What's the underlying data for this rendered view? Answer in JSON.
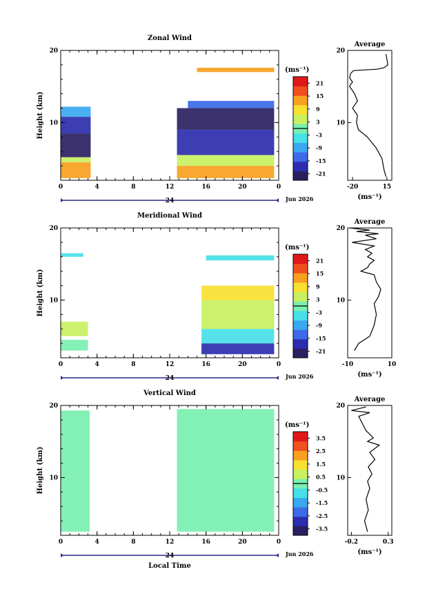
{
  "figure": {
    "xlabel_bottom": "Local Time",
    "day_label": "24",
    "month_label": "Jun 2026"
  },
  "panels": [
    {
      "title": "Zonal Wind",
      "ylabel": "Height (km)",
      "y_ticks": [
        "20",
        "10"
      ],
      "x_ticks": [
        "0",
        "4",
        "8",
        "12",
        "16",
        "20",
        "0"
      ],
      "colorbar": {
        "unit": "(ms⁻¹)",
        "ticks": [
          "21",
          "15",
          "9",
          "3",
          "-3",
          "-9",
          "-15",
          "-21"
        ],
        "range": [
          -24,
          24
        ]
      },
      "average": {
        "title": "Average",
        "y_ticks": [
          "20",
          "10"
        ],
        "x_ticks": [
          "-20",
          "15"
        ],
        "xlabel": "(ms⁻¹)"
      }
    },
    {
      "title": "Meridional Wind",
      "ylabel": "Height (km)",
      "y_ticks": [
        "20",
        "10"
      ],
      "x_ticks": [
        "0",
        "4",
        "8",
        "12",
        "16",
        "20",
        "0"
      ],
      "colorbar": {
        "unit": "(ms⁻¹)",
        "ticks": [
          "21",
          "15",
          "9",
          "3",
          "-3",
          "-9",
          "-15",
          "-21"
        ],
        "range": [
          -24,
          24
        ]
      },
      "average": {
        "title": "Average",
        "y_ticks": [
          "20",
          "10"
        ],
        "x_ticks": [
          "-10",
          "10"
        ],
        "xlabel": "(ms⁻¹)"
      }
    },
    {
      "title": "Vertical Wind",
      "ylabel": "Height (km)",
      "y_ticks": [
        "20",
        "10"
      ],
      "x_ticks": [
        "0",
        "4",
        "8",
        "12",
        "16",
        "20",
        "0"
      ],
      "colorbar": {
        "unit": "(ms⁻¹)",
        "ticks": [
          "3.5",
          "2.5",
          "1.5",
          "0.5",
          "-0.5",
          "-1.5",
          "-2.5",
          "-3.5"
        ],
        "range": [
          -4,
          4
        ]
      },
      "average": {
        "title": "Average",
        "y_ticks": [
          "20",
          "10"
        ],
        "x_ticks": [
          "-0.2",
          "0.3"
        ],
        "xlabel": "(ms⁻¹)"
      }
    }
  ],
  "chart_data": [
    {
      "type": "heatmap",
      "title": "Zonal Wind",
      "xlabel": "",
      "ylabel": "Height (km)",
      "x_range_hours": [
        0,
        24
      ],
      "y_range_km": [
        2,
        20
      ],
      "value_range": [
        -24,
        24
      ],
      "data_gaps_hours": [
        [
          3.3,
          12.8
        ]
      ],
      "blocks": [
        {
          "t": [
            0,
            3.3
          ],
          "h": [
            2.3,
            4.5
          ],
          "value": 15
        },
        {
          "t": [
            0,
            3.3
          ],
          "h": [
            4.5,
            5.2
          ],
          "value": 3
        },
        {
          "t": [
            0,
            3.3
          ],
          "h": [
            5.2,
            8.5
          ],
          "value": -20
        },
        {
          "t": [
            0,
            3.3
          ],
          "h": [
            8.5,
            10.8
          ],
          "value": -16
        },
        {
          "t": [
            0,
            3.3
          ],
          "h": [
            10.8,
            12.2
          ],
          "value": -10
        },
        {
          "t": [
            12.8,
            23.5
          ],
          "h": [
            2.3,
            4.0
          ],
          "value": 14
        },
        {
          "t": [
            12.8,
            23.5
          ],
          "h": [
            4.0,
            5.5
          ],
          "value": 4
        },
        {
          "t": [
            12.8,
            23.5
          ],
          "h": [
            5.5,
            9.0
          ],
          "value": -18
        },
        {
          "t": [
            12.8,
            23.5
          ],
          "h": [
            9.0,
            12.0
          ],
          "value": -22
        },
        {
          "t": [
            14,
            23.5
          ],
          "h": [
            12.0,
            13.0
          ],
          "value": -12
        },
        {
          "t": [
            15,
            23.5
          ],
          "h": [
            17.0,
            17.6
          ],
          "value": 12
        }
      ]
    },
    {
      "type": "heatmap",
      "title": "Meridional Wind",
      "xlabel": "",
      "ylabel": "Height (km)",
      "x_range_hours": [
        0,
        24
      ],
      "y_range_km": [
        2,
        20
      ],
      "value_range": [
        -24,
        24
      ],
      "data_gaps_hours": [
        [
          3.3,
          12.8
        ]
      ],
      "blocks": [
        {
          "t": [
            0,
            3.0
          ],
          "h": [
            3.0,
            4.5
          ],
          "value": -2
        },
        {
          "t": [
            0,
            3.0
          ],
          "h": [
            5.0,
            7.0
          ],
          "value": 4
        },
        {
          "t": [
            0,
            2.5
          ],
          "h": [
            16.0,
            16.5
          ],
          "value": -4
        },
        {
          "t": [
            15.5,
            23.5
          ],
          "h": [
            2.5,
            4.0
          ],
          "value": -16
        },
        {
          "t": [
            15.5,
            23.5
          ],
          "h": [
            4.0,
            6.0
          ],
          "value": -6
        },
        {
          "t": [
            15.5,
            23.5
          ],
          "h": [
            6.0,
            10.0
          ],
          "value": 3
        },
        {
          "t": [
            15.5,
            23.5
          ],
          "h": [
            10.0,
            12.0
          ],
          "value": 8
        },
        {
          "t": [
            16,
            23.5
          ],
          "h": [
            15.5,
            16.2
          ],
          "value": -3
        }
      ]
    },
    {
      "type": "heatmap",
      "title": "Vertical Wind",
      "xlabel": "Local Time",
      "ylabel": "Height (km)",
      "x_range_hours": [
        0,
        24
      ],
      "y_range_km": [
        2,
        20
      ],
      "value_range": [
        -4,
        4
      ],
      "data_gaps_hours": [
        [
          3.3,
          12.8
        ]
      ],
      "blocks": [
        {
          "t": [
            0,
            3.2
          ],
          "h": [
            2.5,
            19.3
          ],
          "value": 0
        },
        {
          "t": [
            12.8,
            23.5
          ],
          "h": [
            2.5,
            19.5
          ],
          "value": -0.3
        }
      ]
    },
    {
      "type": "line",
      "title": "Average",
      "xlabel": "(ms⁻¹)",
      "xlim": [
        -25,
        20
      ],
      "ylim": [
        2,
        20
      ],
      "x": [
        14,
        12,
        10,
        4,
        -5,
        -14,
        -16,
        -15,
        -20,
        -15,
        -18,
        -23,
        -22,
        -20,
        -23,
        -22,
        -19,
        5,
        12,
        16,
        14
      ],
      "y": [
        2.5,
        3.5,
        5.0,
        6.5,
        8.0,
        9.0,
        10.0,
        11.0,
        12.0,
        13.0,
        14.0,
        15.0,
        15.3,
        15.6,
        16.2,
        16.8,
        17.2,
        17.4,
        17.6,
        18.0,
        19.5
      ]
    },
    {
      "type": "line",
      "title": "Average",
      "xlabel": "(ms⁻¹)",
      "xlim": [
        -10,
        10
      ],
      "ylim": [
        2,
        20
      ],
      "x": [
        -7,
        -5,
        0,
        2,
        3,
        2,
        4,
        5,
        3,
        2,
        -4,
        -1,
        0,
        2,
        -1,
        1,
        -2,
        2,
        -8,
        3,
        -2,
        4,
        -6,
        0,
        -9
      ],
      "y": [
        3.0,
        4.0,
        5.0,
        6.5,
        8.0,
        9.5,
        10.5,
        11.5,
        12.5,
        13.5,
        14.0,
        14.5,
        15.0,
        15.5,
        16.0,
        16.5,
        17.0,
        17.5,
        18.0,
        18.5,
        19.0,
        19.2,
        19.5,
        19.7,
        20.0
      ]
    },
    {
      "type": "line",
      "title": "Average",
      "xlabel": "(ms⁻¹)",
      "xlim": [
        -0.25,
        0.35
      ],
      "ylim": [
        2,
        20
      ],
      "x": [
        0.02,
        -0.02,
        0.03,
        0.0,
        0.05,
        0.02,
        0.08,
        0.03,
        0.12,
        0.05,
        0.18,
        0.02,
        0.1,
        0.0,
        -0.05,
        -0.1,
        0.05,
        -0.2,
        0.0
      ],
      "y": [
        2.5,
        4.0,
        5.5,
        7.0,
        8.5,
        9.5,
        10.5,
        11.5,
        12.5,
        13.5,
        14.5,
        15.0,
        15.5,
        16.5,
        17.5,
        18.5,
        19.0,
        19.3,
        19.8
      ]
    }
  ]
}
